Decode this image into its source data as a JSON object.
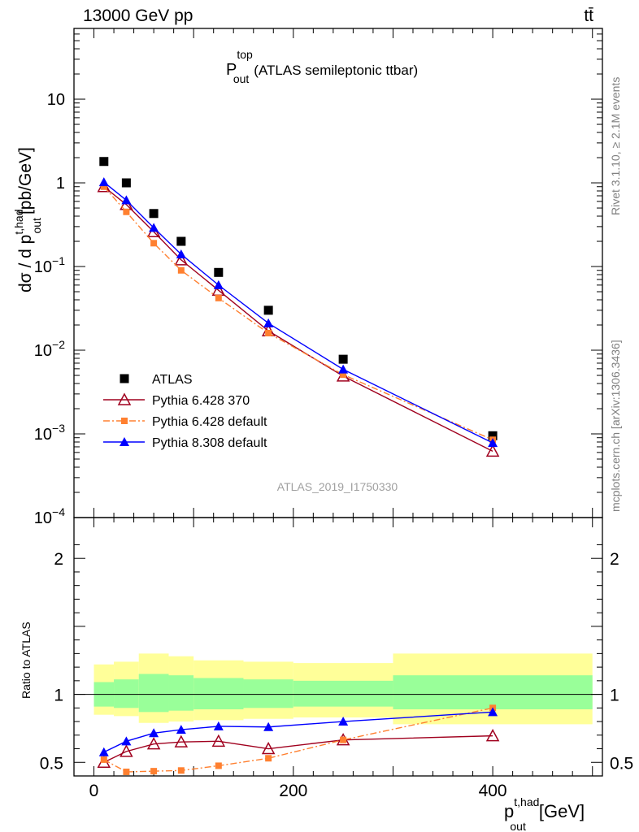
{
  "header": {
    "energy_label": "13000 GeV pp",
    "process_label": "tt̄"
  },
  "side_labels": {
    "rivet": "Rivet 3.1.10, ≥ 2.1M events",
    "mcplots": "mcplots.cern.ch [arXiv:1306.3436]"
  },
  "colors": {
    "atlas": "#000000",
    "py6_370": "#a0001e",
    "py6_default": "#ff8030",
    "py8_default": "#0000ff",
    "band_inner": "#99ff99",
    "band_outer": "#ffff99",
    "watermark": "#a0a0a0"
  },
  "chart_data": {
    "type": "scatter",
    "title_main": "P",
    "title_sup": "top",
    "title_sub": "out",
    "title_rest": "(ATLAS semileptonic ttbar)",
    "watermark": "ATLAS_2019_I1750330",
    "xlabel_main": "p",
    "xlabel_sup": "t,had",
    "xlabel_sub": "out",
    "xlabel_unit": "[GeV]",
    "ylabel_pre": "dσ / d p",
    "ylabel_sup": "t,had",
    "ylabel_sub": "out",
    "ylabel_unit": "[pb/GeV]",
    "ratio_ylabel": "Ratio to ATLAS",
    "xlim": [
      -20,
      510
    ],
    "ylim": [
      0.0001,
      70
    ],
    "ylog": true,
    "ratio_ylim": [
      0.4,
      2.3
    ],
    "x_ticks": [
      0,
      200,
      400
    ],
    "ratio_ticks": [
      0.5,
      1,
      2
    ],
    "y_tick_labels": [
      {
        "v": 10,
        "base": "10",
        "exp": ""
      },
      {
        "v": 1,
        "base": "1",
        "exp": ""
      },
      {
        "v": 0.1,
        "base": "10",
        "exp": "−1"
      },
      {
        "v": 0.01,
        "base": "10",
        "exp": "−2"
      },
      {
        "v": 0.001,
        "base": "10",
        "exp": "−3"
      },
      {
        "v": 0.0001,
        "base": "10",
        "exp": "−4"
      }
    ],
    "x": [
      10,
      32.5,
      60,
      87.5,
      125,
      175,
      250,
      400
    ],
    "bins": [
      [
        0,
        20
      ],
      [
        20,
        45
      ],
      [
        45,
        75
      ],
      [
        75,
        100
      ],
      [
        100,
        150
      ],
      [
        150,
        200
      ],
      [
        200,
        300
      ],
      [
        300,
        500
      ]
    ],
    "band_outer": [
      [
        0.85,
        1.22
      ],
      [
        0.84,
        1.24
      ],
      [
        0.79,
        1.3
      ],
      [
        0.8,
        1.28
      ],
      [
        0.81,
        1.25
      ],
      [
        0.82,
        1.24
      ],
      [
        0.83,
        1.23
      ],
      [
        0.78,
        1.3
      ]
    ],
    "band_inner": [
      [
        0.91,
        1.09
      ],
      [
        0.9,
        1.11
      ],
      [
        0.87,
        1.15
      ],
      [
        0.88,
        1.14
      ],
      [
        0.89,
        1.12
      ],
      [
        0.9,
        1.11
      ],
      [
        0.91,
        1.1
      ],
      [
        0.89,
        1.14
      ]
    ],
    "series": [
      {
        "name": "ATLAS",
        "key": "atlas",
        "marker": "square",
        "values": [
          1.8,
          1.0,
          0.43,
          0.2,
          0.085,
          0.03,
          0.0078,
          0.00095
        ],
        "ratio": []
      },
      {
        "name": "Pythia 6.428 370",
        "key": "py6_370",
        "marker": "open-triangle",
        "values": [
          0.9,
          0.55,
          0.26,
          0.12,
          0.052,
          0.017,
          0.0049,
          0.00062
        ],
        "ratio": [
          0.5,
          0.58,
          0.635,
          0.65,
          0.655,
          0.6,
          0.665,
          0.695
        ]
      },
      {
        "name": "Pythia 6.428 default",
        "key": "py6_default",
        "marker": "small-square",
        "values": [
          0.9,
          0.45,
          0.19,
          0.09,
          0.042,
          0.016,
          0.0051,
          0.00085
        ],
        "ratio": [
          0.52,
          0.43,
          0.435,
          0.44,
          0.475,
          0.53,
          0.665,
          0.9
        ]
      },
      {
        "name": "Pythia 8.308 default",
        "key": "py8_default",
        "marker": "triangle",
        "values": [
          1.02,
          0.62,
          0.29,
          0.14,
          0.06,
          0.021,
          0.0059,
          0.00078
        ],
        "ratio": [
          0.575,
          0.655,
          0.715,
          0.74,
          0.765,
          0.76,
          0.8,
          0.87
        ]
      }
    ]
  }
}
